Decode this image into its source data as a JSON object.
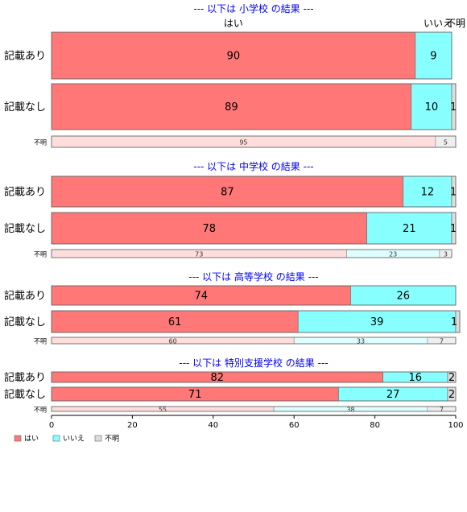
{
  "chart_data": {
    "type": "bar",
    "orientation": "horizontal-stacked-percent",
    "categories": [
      "はい",
      "いいえ",
      "不明"
    ],
    "colors": {
      "big": [
        "#ff7777",
        "#88ffff",
        "#dddddd"
      ],
      "small": [
        "#ffdddd",
        "#ddffff",
        "#eeeeee"
      ]
    },
    "xlim": [
      0,
      100
    ],
    "xticks": [
      0,
      20,
      40,
      60,
      80,
      100
    ],
    "legend": {
      "position": "bottom-left",
      "items": [
        "はい",
        "いいえ",
        "不明"
      ]
    },
    "panels": [
      {
        "title": "--- 以下は 小学校 の結果 ---",
        "rows": [
          {
            "label": "記載あり",
            "values": [
              90,
              9,
              0
            ]
          },
          {
            "label": "記載なし",
            "values": [
              89,
              10,
              1
            ]
          },
          {
            "label": "不明",
            "values": [
              95,
              0,
              5
            ]
          }
        ]
      },
      {
        "title": "--- 以下は 中学校 の結果 ---",
        "rows": [
          {
            "label": "記載あり",
            "values": [
              87,
              12,
              1
            ]
          },
          {
            "label": "記載なし",
            "values": [
              78,
              21,
              1
            ]
          },
          {
            "label": "不明",
            "values": [
              73,
              23,
              3
            ]
          }
        ]
      },
      {
        "title": "--- 以下は 高等学校 の結果 ---",
        "rows": [
          {
            "label": "記載あり",
            "values": [
              74,
              26,
              0
            ]
          },
          {
            "label": "記載なし",
            "values": [
              61,
              39,
              1
            ]
          },
          {
            "label": "不明",
            "values": [
              60,
              33,
              7
            ]
          }
        ]
      },
      {
        "title": "--- 以下は 特別支援学校 の結果 ---",
        "rows": [
          {
            "label": "記載あり",
            "values": [
              82,
              16,
              2
            ]
          },
          {
            "label": "記載なし",
            "values": [
              71,
              27,
              2
            ]
          },
          {
            "label": "不明",
            "values": [
              55,
              38,
              7
            ]
          }
        ]
      }
    ]
  }
}
